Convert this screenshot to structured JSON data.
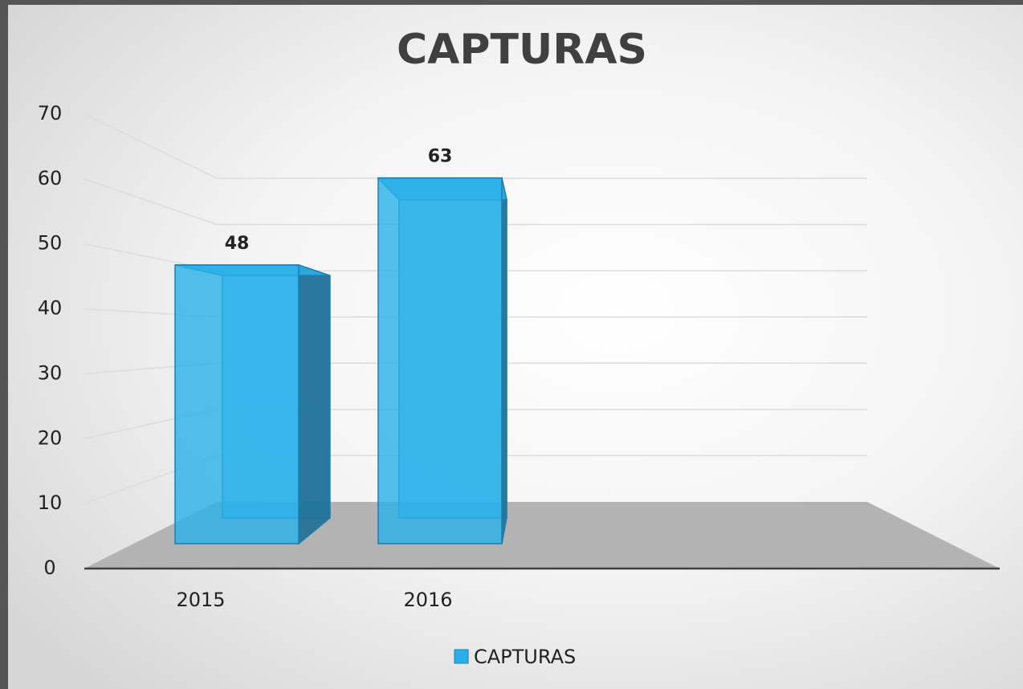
{
  "chart_data": {
    "type": "bar3d",
    "title": "CAPTURAS",
    "categories": [
      "2015",
      "2016"
    ],
    "series": [
      {
        "name": "CAPTURAS",
        "color": "#29b0ea",
        "values": [
          48,
          63
        ]
      }
    ],
    "ylim": [
      0,
      70
    ],
    "yticks": [
      0,
      10,
      20,
      30,
      40,
      50,
      60,
      70
    ],
    "grid": true,
    "legend": "bottom"
  }
}
